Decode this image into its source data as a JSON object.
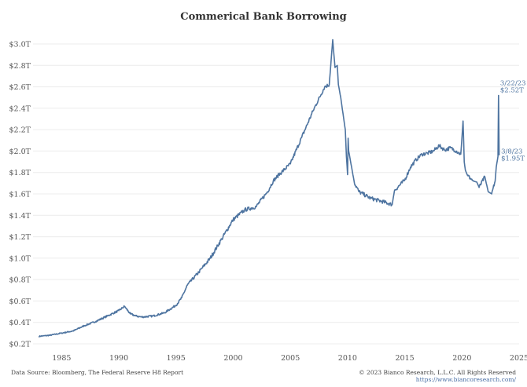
{
  "chart_data": {
    "type": "line",
    "title": "Commerical Bank Borrowing",
    "xlabel": "",
    "ylabel": "",
    "xlim": [
      1982.5,
      2025.0
    ],
    "ylim": [
      0.2,
      3.0
    ],
    "yticks": [
      0.2,
      0.4,
      0.6,
      0.8,
      1.0,
      1.2,
      1.4,
      1.6,
      1.8,
      2.0,
      2.2,
      2.4,
      2.6,
      2.8,
      3.0
    ],
    "ytick_labels": [
      "$0.2T",
      "$0.4T",
      "$0.6T",
      "$0.8T",
      "$1.0T",
      "$1.2T",
      "$1.4T",
      "$1.6T",
      "$1.8T",
      "$2.0T",
      "$2.2T",
      "$2.4T",
      "$2.6T",
      "$2.8T",
      "$3.0T"
    ],
    "xticks": [
      1985,
      1990,
      1995,
      2000,
      2005,
      2010,
      2015,
      2020,
      2025
    ],
    "xtick_labels": [
      "1985",
      "1990",
      "1995",
      "2000",
      "2005",
      "2010",
      "2015",
      "2020",
      "2025"
    ],
    "grid": true,
    "color": "#4e74a0",
    "series": [
      {
        "x": [
          1983.0,
          1984.0,
          1985.0,
          1986.0,
          1987.0,
          1988.0,
          1989.0,
          1990.0,
          1990.5,
          1991.0,
          1991.5,
          1992.0,
          1993.0,
          1994.0,
          1995.0,
          1995.5,
          1996.0,
          1997.0,
          1998.0,
          1999.0,
          2000.0,
          2001.0,
          2002.0,
          2003.0,
          2003.5,
          2004.0,
          2005.0,
          2006.0,
          2007.0,
          2008.0,
          2008.4,
          2008.7,
          2008.9,
          2009.1,
          2009.2,
          2009.4,
          2009.6,
          2009.8,
          2009.9,
          2010.0,
          2010.05,
          2010.1,
          2010.3,
          2010.6,
          2011.0,
          2012.0,
          2013.0,
          2013.9,
          2014.1,
          2015.0,
          2015.5,
          2016.0,
          2016.5,
          2017.0,
          2017.5,
          2018.0,
          2018.5,
          2019.0,
          2019.5,
          2019.9,
          2020.1,
          2020.2,
          2020.3,
          2020.5,
          2021.0,
          2021.3,
          2021.5,
          2022.0,
          2022.3,
          2022.6,
          2022.9,
          2023.0,
          2023.15,
          2023.2,
          2023.25
        ],
        "values": [
          0.27,
          0.28,
          0.3,
          0.32,
          0.37,
          0.41,
          0.46,
          0.51,
          0.55,
          0.48,
          0.46,
          0.45,
          0.46,
          0.49,
          0.56,
          0.63,
          0.75,
          0.87,
          1.0,
          1.18,
          1.36,
          1.45,
          1.48,
          1.62,
          1.72,
          1.78,
          1.88,
          2.13,
          2.38,
          2.6,
          2.62,
          3.04,
          2.78,
          2.8,
          2.62,
          2.5,
          2.35,
          2.2,
          1.95,
          1.78,
          2.12,
          2.0,
          1.88,
          1.7,
          1.62,
          1.56,
          1.53,
          1.5,
          1.63,
          1.73,
          1.85,
          1.92,
          1.97,
          1.98,
          2.0,
          2.05,
          2.01,
          2.03,
          2.0,
          1.97,
          2.28,
          1.9,
          1.82,
          1.77,
          1.72,
          1.71,
          1.66,
          1.76,
          1.62,
          1.6,
          1.72,
          1.85,
          1.95,
          2.52,
          1.96
        ]
      }
    ],
    "annotations": [
      {
        "date": "3/22/23",
        "value": "$2.52T",
        "x": 2023.2,
        "y": 2.52
      },
      {
        "date": "3/8/23",
        "value": "$1.95T",
        "x": 2023.15,
        "y": 1.95
      }
    ]
  },
  "footer": {
    "source": "Data Source: Bloomberg, The Federal Reserve H8 Report",
    "copyright": "© 2023 Bianco Research, L.L.C. All Rights Reserved",
    "url": "https://www.biancoresearch.com/"
  }
}
